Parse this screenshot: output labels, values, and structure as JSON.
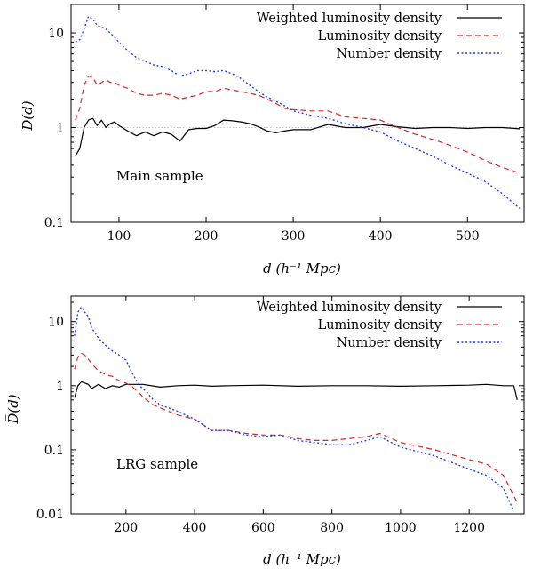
{
  "chart_data": [
    {
      "type": "line",
      "annotation": "Main sample",
      "xlabel": "d (h⁻¹ Mpc)",
      "ylabel": "D̅(d)",
      "xlim": [
        45,
        565
      ],
      "ylim": [
        0.1,
        20
      ],
      "yscale": "log",
      "xticks": [
        100,
        200,
        300,
        400,
        500
      ],
      "yticks": [
        0.1,
        1,
        10
      ],
      "ytick_labels": [
        "0.1",
        "1",
        "10"
      ],
      "reference_line": 1,
      "legend_position": "top-right",
      "series": [
        {
          "name": "Weighted luminosity density",
          "color": "#000000",
          "dash": "solid",
          "x": [
            50,
            55,
            60,
            65,
            70,
            75,
            80,
            85,
            90,
            95,
            100,
            110,
            120,
            130,
            140,
            150,
            160,
            170,
            180,
            190,
            200,
            210,
            220,
            230,
            240,
            250,
            260,
            270,
            280,
            290,
            300,
            320,
            340,
            360,
            380,
            400,
            420,
            440,
            460,
            480,
            500,
            520,
            540,
            560
          ],
          "y": [
            0.5,
            0.6,
            1.0,
            1.2,
            1.25,
            1.05,
            1.2,
            1.0,
            1.1,
            1.15,
            1.05,
            0.92,
            0.82,
            0.9,
            0.82,
            0.9,
            0.85,
            0.72,
            0.95,
            0.98,
            0.98,
            1.05,
            1.2,
            1.18,
            1.15,
            1.1,
            1.02,
            0.92,
            0.88,
            0.92,
            0.95,
            0.95,
            1.08,
            1.0,
            1.0,
            1.08,
            1.02,
            0.98,
            1.0,
            1.0,
            0.98,
            1.0,
            1.0,
            0.97
          ]
        },
        {
          "name": "Luminosity density",
          "color": "#d62728",
          "dash": "dashed",
          "x": [
            50,
            55,
            60,
            65,
            70,
            75,
            80,
            85,
            90,
            95,
            100,
            110,
            120,
            130,
            140,
            150,
            160,
            170,
            180,
            190,
            200,
            210,
            220,
            230,
            240,
            250,
            260,
            270,
            280,
            290,
            300,
            320,
            340,
            360,
            380,
            400,
            420,
            440,
            460,
            480,
            500,
            520,
            540,
            560
          ],
          "y": [
            1.2,
            1.6,
            2.8,
            3.5,
            3.4,
            2.8,
            3.0,
            3.2,
            3.0,
            3.0,
            2.8,
            2.6,
            2.3,
            2.2,
            2.2,
            2.3,
            2.2,
            2.0,
            2.1,
            2.2,
            2.4,
            2.4,
            2.6,
            2.5,
            2.4,
            2.3,
            2.2,
            2.0,
            1.8,
            1.6,
            1.55,
            1.5,
            1.5,
            1.3,
            1.25,
            1.2,
            1.0,
            0.85,
            0.75,
            0.65,
            0.55,
            0.45,
            0.38,
            0.33
          ]
        },
        {
          "name": "Number density",
          "color": "#1f3ff0",
          "dash": "dotted",
          "x": [
            50,
            55,
            60,
            65,
            70,
            75,
            80,
            85,
            90,
            95,
            100,
            110,
            120,
            130,
            140,
            150,
            160,
            170,
            180,
            190,
            200,
            210,
            220,
            230,
            240,
            250,
            260,
            270,
            280,
            290,
            300,
            320,
            340,
            360,
            380,
            400,
            420,
            440,
            460,
            480,
            500,
            520,
            540,
            560
          ],
          "y": [
            8,
            8.5,
            11,
            15,
            14,
            12,
            11.5,
            11,
            10,
            9,
            8,
            6.5,
            5.5,
            5.0,
            4.6,
            4.4,
            4.0,
            3.5,
            3.7,
            4.0,
            4.0,
            3.9,
            4.0,
            3.7,
            3.3,
            2.8,
            2.4,
            2.1,
            1.9,
            1.7,
            1.5,
            1.35,
            1.25,
            1.1,
            1.0,
            0.9,
            0.72,
            0.6,
            0.5,
            0.4,
            0.33,
            0.27,
            0.2,
            0.14
          ]
        }
      ]
    },
    {
      "type": "line",
      "annotation": "LRG sample",
      "xlabel": "d (h⁻¹ Mpc)",
      "ylabel": "D̅(d)",
      "xlim": [
        40,
        1360
      ],
      "ylim": [
        0.01,
        25
      ],
      "yscale": "log",
      "xticks": [
        200,
        400,
        600,
        800,
        1000,
        1200
      ],
      "yticks": [
        0.01,
        0.1,
        1,
        10
      ],
      "ytick_labels": [
        "0.01",
        "0.1",
        "1",
        "10"
      ],
      "legend_position": "top-right",
      "series": [
        {
          "name": "Weighted luminosity density",
          "color": "#000000",
          "dash": "solid",
          "x": [
            50,
            60,
            70,
            80,
            90,
            100,
            120,
            140,
            160,
            180,
            200,
            250,
            300,
            350,
            400,
            450,
            500,
            600,
            700,
            800,
            900,
            1000,
            1100,
            1200,
            1250,
            1300,
            1330,
            1340
          ],
          "y": [
            0.65,
            1.0,
            1.15,
            1.1,
            1.05,
            0.9,
            1.05,
            0.9,
            1.0,
            0.95,
            1.05,
            1.05,
            0.95,
            1.0,
            1.02,
            0.98,
            1.0,
            1.02,
            0.98,
            1.0,
            1.0,
            0.98,
            1.0,
            1.02,
            1.05,
            1.0,
            1.0,
            0.6
          ]
        },
        {
          "name": "Luminosity density",
          "color": "#d62728",
          "dash": "dashed",
          "x": [
            50,
            60,
            70,
            80,
            90,
            100,
            120,
            140,
            160,
            180,
            200,
            220,
            240,
            260,
            280,
            300,
            350,
            400,
            450,
            500,
            550,
            600,
            650,
            700,
            750,
            800,
            850,
            900,
            940,
            1000,
            1100,
            1200,
            1250,
            1300,
            1340
          ],
          "y": [
            1.8,
            2.8,
            3.2,
            3.0,
            2.6,
            2.2,
            1.7,
            1.5,
            1.4,
            1.2,
            1.1,
            0.95,
            0.75,
            0.6,
            0.5,
            0.45,
            0.35,
            0.3,
            0.2,
            0.2,
            0.18,
            0.17,
            0.17,
            0.15,
            0.14,
            0.14,
            0.15,
            0.16,
            0.18,
            0.13,
            0.1,
            0.07,
            0.06,
            0.04,
            0.015
          ]
        },
        {
          "name": "Number density",
          "color": "#1f3ff0",
          "dash": "dotted",
          "x": [
            50,
            60,
            70,
            80,
            90,
            100,
            120,
            140,
            160,
            180,
            200,
            220,
            240,
            260,
            280,
            300,
            350,
            400,
            450,
            500,
            550,
            600,
            650,
            700,
            750,
            800,
            850,
            900,
            940,
            1000,
            1100,
            1200,
            1250,
            1300,
            1330
          ],
          "y": [
            6,
            14,
            17,
            14,
            12,
            8,
            5.5,
            4.3,
            3.5,
            3.0,
            2.5,
            1.5,
            1.0,
            0.8,
            0.6,
            0.5,
            0.4,
            0.3,
            0.2,
            0.2,
            0.17,
            0.16,
            0.17,
            0.14,
            0.13,
            0.12,
            0.12,
            0.14,
            0.16,
            0.11,
            0.08,
            0.05,
            0.04,
            0.025,
            0.011
          ]
        }
      ]
    }
  ]
}
